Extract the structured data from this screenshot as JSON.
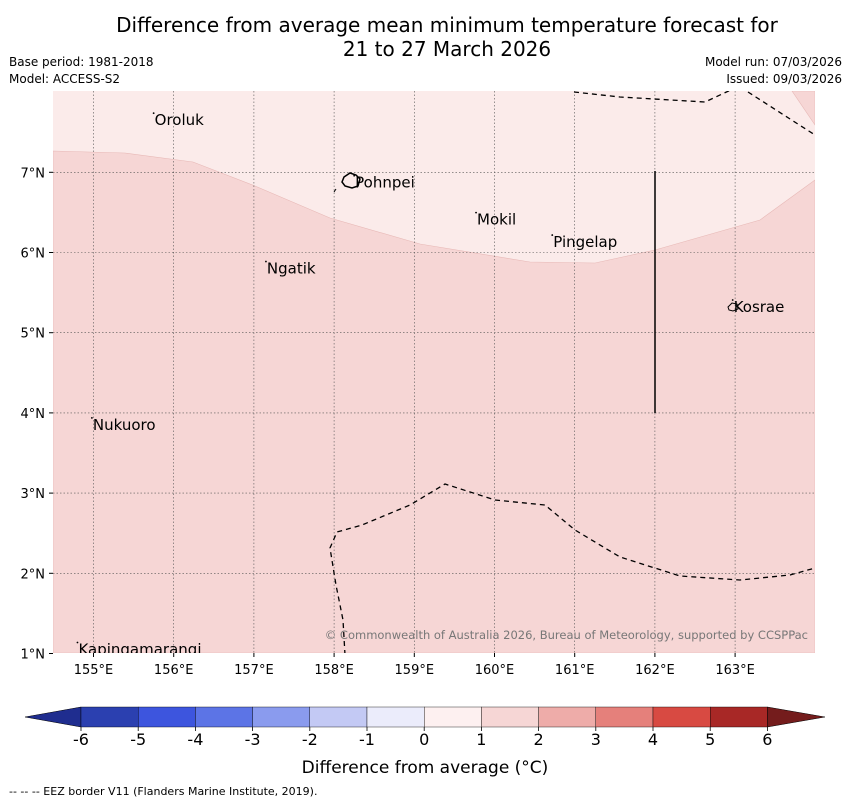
{
  "header": {
    "title_line1": "Difference from average mean minimum temperature forecast for",
    "title_line2": "21 to 27 March 2026",
    "base_period": "Base period: 1981-2018",
    "model": "Model: ACCESS-S2",
    "model_run": "Model run: 07/03/2026",
    "issued": "Issued: 09/03/2026"
  },
  "map": {
    "lon_ticks": [
      "155°E",
      "156°E",
      "157°E",
      "158°E",
      "159°E",
      "160°E",
      "161°E",
      "162°E",
      "163°E"
    ],
    "lat_ticks": [
      "1°N",
      "2°N",
      "3°N",
      "4°N",
      "5°N",
      "6°N",
      "7°N"
    ],
    "places": [
      {
        "name": "Oroluk",
        "lon": 155.75,
        "lat": 7.65
      },
      {
        "name": "Pohnpei",
        "lon": 158.25,
        "lat": 6.87
      },
      {
        "name": "Mokil",
        "lon": 159.77,
        "lat": 6.41
      },
      {
        "name": "Pingelap",
        "lon": 160.72,
        "lat": 6.13
      },
      {
        "name": "Ngatik",
        "lon": 157.15,
        "lat": 5.8
      },
      {
        "name": "Kosrae",
        "lon": 162.97,
        "lat": 5.32
      },
      {
        "name": "Nukuoro",
        "lon": 154.98,
        "lat": 3.85
      },
      {
        "name": "Kapingamarangi",
        "lon": 154.8,
        "lat": 1.05
      }
    ],
    "copyright": "© Commonwealth of Australia 2026, Bureau of Meteorology, supported by CCSPPac"
  },
  "colorbar": {
    "ticks": [
      "-6",
      "-5",
      "-4",
      "-3",
      "-2",
      "-1",
      "0",
      "1",
      "2",
      "3",
      "4",
      "5",
      "6"
    ],
    "colors": [
      "#1f2d8f",
      "#2b40b0",
      "#3d55de",
      "#5c74e6",
      "#8a9bee",
      "#c3c9f4",
      "#ebecfb",
      "#fdf0f0",
      "#f6d6d5",
      "#eeaca9",
      "#e5807b",
      "#d84a42",
      "#a82826",
      "#741c1c"
    ],
    "label": "Difference from average (°C)"
  },
  "footer": "-- -- -- EEZ border V11 (Flanders Marine Institute, 2019)."
}
